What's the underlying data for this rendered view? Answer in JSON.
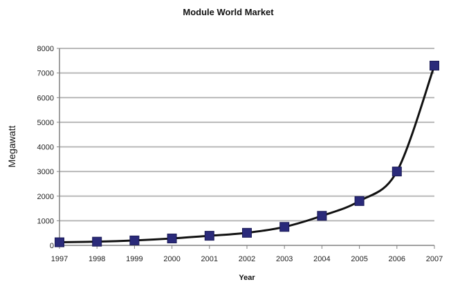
{
  "chart_data": {
    "type": "line",
    "title": "Module World Market",
    "xlabel": "Year",
    "ylabel": "Megawatt",
    "categories": [
      "1997",
      "1998",
      "1999",
      "2000",
      "2001",
      "2002",
      "2003",
      "2004",
      "2005",
      "2006",
      "2007"
    ],
    "series": [
      {
        "values": [
          125,
          150,
          200,
          280,
          390,
          510,
          750,
          1200,
          1800,
          3000,
          7300
        ]
      }
    ],
    "ylim": [
      0,
      8000
    ],
    "yticks": [
      "0",
      "1000",
      "2000",
      "3000",
      "4000",
      "5000",
      "6000",
      "7000",
      "8000"
    ],
    "grid": true,
    "legend": "none",
    "colors": {
      "line": "#111111",
      "marker": "#2a2a7a",
      "grid": "#b8b8b8",
      "axis": "#808080"
    }
  }
}
